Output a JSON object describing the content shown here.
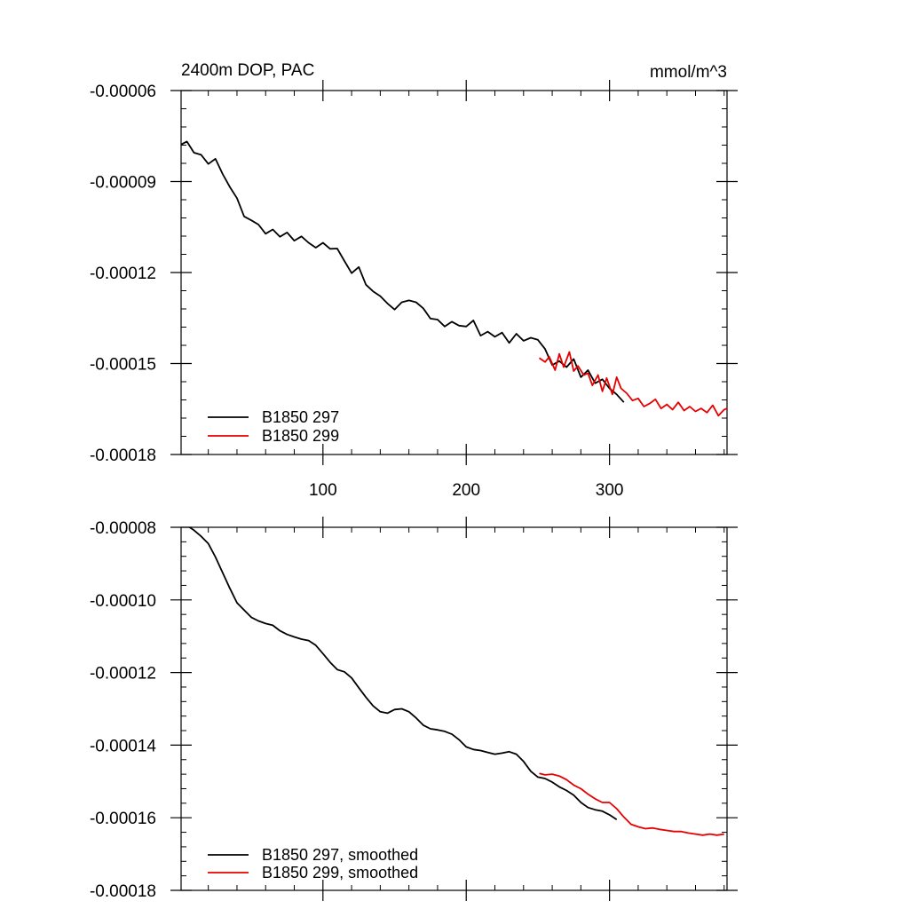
{
  "chart_data": [
    {
      "type": "line",
      "title": "2400m DOP, PAC",
      "units": "mmol/m^3",
      "xlim": [
        1,
        382
      ],
      "ylim": [
        -0.00018,
        -6e-05
      ],
      "x_ticks": [
        100,
        200,
        300
      ],
      "x_tick_labels": [
        "100",
        "200",
        "300"
      ],
      "y_ticks": [
        -6e-05,
        -9e-05,
        -0.00012,
        -0.00015,
        -0.00018
      ],
      "y_tick_labels": [
        "-0.00006",
        "-0.00009",
        "-0.00012",
        "-0.00015",
        "-0.00018"
      ],
      "legend_position": "bottom-left",
      "series": [
        {
          "name": "B1850 297",
          "color": "#000000",
          "x": [
            1,
            5,
            10,
            15,
            20,
            25,
            30,
            35,
            40,
            45,
            50,
            55,
            60,
            65,
            70,
            75,
            80,
            85,
            90,
            95,
            100,
            105,
            110,
            115,
            120,
            125,
            130,
            135,
            140,
            145,
            150,
            155,
            160,
            165,
            170,
            175,
            180,
            185,
            190,
            195,
            200,
            205,
            210,
            215,
            220,
            225,
            230,
            235,
            240,
            245,
            250,
            255,
            260,
            265,
            270,
            275,
            280,
            285,
            290,
            295,
            300,
            305,
            310
          ],
          "values": [
            -7.78e-05,
            -7.68e-05,
            -8.05e-05,
            -8.12e-05,
            -8.42e-05,
            -8.25e-05,
            -8.75e-05,
            -9.18e-05,
            -9.55e-05,
            -0.0001015,
            -0.0001028,
            -0.0001042,
            -0.0001072,
            -0.0001058,
            -0.0001082,
            -0.0001068,
            -0.0001095,
            -0.0001081,
            -0.0001102,
            -0.0001118,
            -0.0001102,
            -0.0001122,
            -0.0001121,
            -0.0001162,
            -0.0001202,
            -0.0001182,
            -0.000124,
            -0.0001262,
            -0.0001278,
            -0.0001302,
            -0.0001322,
            -0.0001298,
            -0.0001292,
            -0.0001298,
            -0.0001318,
            -0.0001352,
            -0.0001355,
            -0.0001378,
            -0.0001362,
            -0.0001375,
            -0.0001378,
            -0.0001358,
            -0.0001408,
            -0.0001395,
            -0.0001412,
            -0.0001398,
            -0.0001432,
            -0.0001402,
            -0.0001425,
            -0.0001415,
            -0.0001422,
            -0.0001452,
            -0.0001505,
            -0.0001492,
            -0.0001512,
            -0.0001485,
            -0.0001545,
            -0.0001522,
            -0.0001565,
            -0.0001552,
            -0.0001582,
            -0.0001602,
            -0.0001628
          ]
        },
        {
          "name": "B1850 299",
          "color": "#e60000",
          "x": [
            251,
            255,
            258,
            262,
            265,
            268,
            272,
            275,
            278,
            282,
            285,
            288,
            292,
            295,
            298,
            302,
            305,
            308,
            312,
            316,
            320,
            324,
            328,
            332,
            336,
            340,
            344,
            348,
            352,
            356,
            360,
            364,
            368,
            372,
            376,
            380,
            382
          ],
          "values": [
            -0.0001482,
            -0.0001495,
            -0.0001478,
            -0.0001522,
            -0.0001468,
            -0.0001512,
            -0.0001462,
            -0.0001525,
            -0.0001508,
            -0.0001538,
            -0.0001532,
            -0.0001572,
            -0.0001538,
            -0.0001592,
            -0.0001548,
            -0.0001602,
            -0.0001545,
            -0.0001582,
            -0.0001598,
            -0.0001622,
            -0.0001615,
            -0.0001642,
            -0.0001632,
            -0.0001618,
            -0.0001648,
            -0.0001635,
            -0.0001652,
            -0.0001628,
            -0.0001655,
            -0.0001642,
            -0.0001658,
            -0.0001648,
            -0.0001662,
            -0.0001638,
            -0.0001672,
            -0.0001652,
            -0.0001648
          ]
        }
      ]
    },
    {
      "type": "line",
      "title": "",
      "units": "",
      "xlim": [
        1,
        382
      ],
      "ylim": [
        -0.00018,
        -8e-05
      ],
      "x_ticks": [
        100,
        200,
        300
      ],
      "x_tick_labels": [
        "",
        "",
        ""
      ],
      "y_ticks": [
        -8e-05,
        -0.0001,
        -0.00012,
        -0.00014,
        -0.00016,
        -0.00018
      ],
      "y_tick_labels": [
        "-0.00008",
        "-0.00010",
        "-0.00012",
        "-0.00014",
        "-0.00016",
        "-0.00018"
      ],
      "legend_position": "bottom-left",
      "series": [
        {
          "name": "B1850 297, smoothed",
          "color": "#000000",
          "x": [
            5,
            10,
            15,
            20,
            25,
            30,
            35,
            40,
            45,
            50,
            55,
            60,
            65,
            70,
            75,
            80,
            85,
            90,
            95,
            100,
            105,
            110,
            115,
            120,
            125,
            130,
            135,
            140,
            145,
            150,
            155,
            160,
            165,
            170,
            175,
            180,
            185,
            190,
            195,
            200,
            205,
            210,
            215,
            220,
            225,
            230,
            235,
            240,
            245,
            250,
            255,
            260,
            265,
            270,
            275,
            280,
            285,
            290,
            295,
            300,
            305
          ],
          "values": [
            -7.95e-05,
            -8.08e-05,
            -8.25e-05,
            -8.45e-05,
            -8.82e-05,
            -9.25e-05,
            -9.68e-05,
            -0.0001008,
            -0.0001028,
            -0.0001048,
            -0.0001058,
            -0.0001065,
            -0.000107,
            -0.0001085,
            -0.0001095,
            -0.0001102,
            -0.0001108,
            -0.0001112,
            -0.0001125,
            -0.0001148,
            -0.0001172,
            -0.0001192,
            -0.0001198,
            -0.0001215,
            -0.0001242,
            -0.0001268,
            -0.0001292,
            -0.0001308,
            -0.0001312,
            -0.0001302,
            -0.00013,
            -0.0001308,
            -0.0001325,
            -0.0001345,
            -0.0001355,
            -0.0001358,
            -0.0001362,
            -0.000137,
            -0.0001385,
            -0.0001405,
            -0.0001412,
            -0.0001415,
            -0.000142,
            -0.0001425,
            -0.0001422,
            -0.0001418,
            -0.0001425,
            -0.0001445,
            -0.0001472,
            -0.0001488,
            -0.0001492,
            -0.0001502,
            -0.0001515,
            -0.0001525,
            -0.0001538,
            -0.0001558,
            -0.0001572,
            -0.0001578,
            -0.0001582,
            -0.0001592,
            -0.0001605
          ]
        },
        {
          "name": "B1850 299, smoothed",
          "color": "#e60000",
          "x": [
            251,
            255,
            260,
            265,
            270,
            275,
            280,
            285,
            290,
            295,
            300,
            305,
            310,
            315,
            320,
            325,
            330,
            335,
            340,
            345,
            350,
            355,
            360,
            365,
            370,
            375,
            380
          ],
          "values": [
            -0.0001478,
            -0.0001482,
            -0.000148,
            -0.0001485,
            -0.0001495,
            -0.000151,
            -0.000152,
            -0.0001535,
            -0.0001548,
            -0.0001558,
            -0.0001558,
            -0.0001575,
            -0.0001598,
            -0.0001618,
            -0.0001625,
            -0.000163,
            -0.0001628,
            -0.0001632,
            -0.0001635,
            -0.0001638,
            -0.0001638,
            -0.0001642,
            -0.0001645,
            -0.0001648,
            -0.0001645,
            -0.0001648,
            -0.0001645
          ]
        }
      ]
    }
  ]
}
